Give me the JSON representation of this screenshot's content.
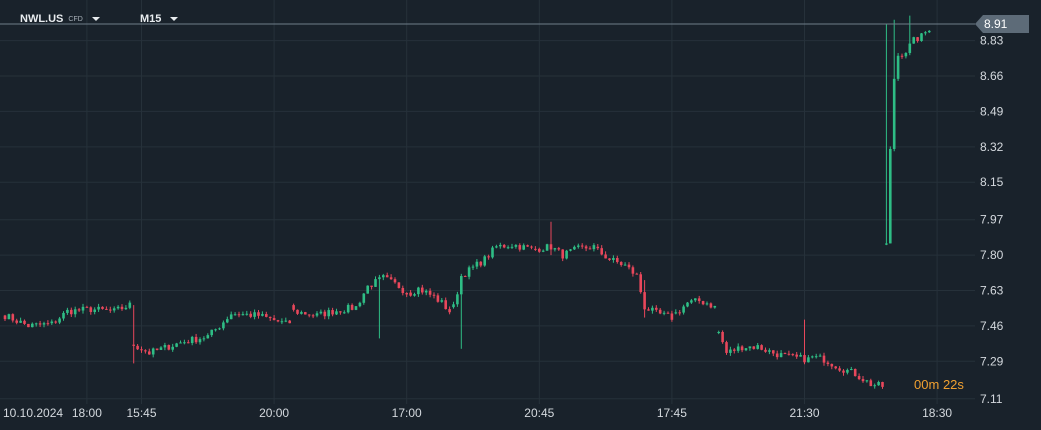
{
  "toolbar": {
    "symbol": "NWL.US",
    "symbol_type": "CFD",
    "timeframe": "M15"
  },
  "countdown": {
    "minutes": "00",
    "min_unit": "m",
    "seconds": "22",
    "sec_unit": "s"
  },
  "colors": {
    "background": "#19222b",
    "grid": "#26313a",
    "up": "#2ebd85",
    "down": "#e8475b",
    "price_tag": "#5d6b78",
    "axis_text": "#d4d9de"
  },
  "chart_data": {
    "type": "candlestick",
    "y_ticks": [
      "8.83",
      "8.66",
      "8.49",
      "8.32",
      "8.15",
      "7.97",
      "7.80",
      "7.63",
      "7.46",
      "7.29",
      "7.11"
    ],
    "y_tick_values": [
      8.83,
      8.66,
      8.49,
      8.32,
      8.15,
      7.97,
      7.8,
      7.63,
      7.46,
      7.29,
      7.11
    ],
    "ylim": [
      7.085,
      9.025
    ],
    "current_price": "8.91",
    "current_price_value": 8.91,
    "x_ticks": [
      "10.10.2024",
      "18:00",
      "15:45",
      "20:00",
      "17:00",
      "20:45",
      "17:45",
      "21:30",
      "18:30"
    ],
    "x_tick_index": [
      0,
      21,
      35,
      69,
      103,
      137,
      171,
      205,
      239
    ],
    "n_bars": 240,
    "segments": [
      {
        "from": 0,
        "to": 32,
        "start": 7.51,
        "end": 7.56,
        "points": [
          [
            0,
            7.51
          ],
          [
            6,
            7.46
          ],
          [
            12,
            7.47
          ],
          [
            16,
            7.53
          ],
          [
            22,
            7.54
          ],
          [
            28,
            7.53
          ],
          [
            32,
            7.56
          ]
        ]
      },
      {
        "from": 33,
        "to": 73,
        "start": 7.37,
        "end": 7.56,
        "points": [
          [
            33,
            7.37
          ],
          [
            37,
            7.33
          ],
          [
            45,
            7.38
          ],
          [
            52,
            7.41
          ],
          [
            55,
            7.46
          ],
          [
            58,
            7.52
          ],
          [
            65,
            7.51
          ],
          [
            72,
            7.47
          ],
          [
            75,
            7.49
          ],
          [
            78,
            7.56
          ]
        ]
      },
      {
        "from": 74,
        "to": 103,
        "start": 7.56,
        "end": 7.53,
        "points": [
          [
            74,
            7.53
          ],
          [
            80,
            7.51
          ],
          [
            84,
            7.53
          ],
          [
            90,
            7.55
          ],
          [
            93,
            7.65
          ],
          [
            97,
            7.69
          ],
          [
            101,
            7.65
          ],
          [
            103,
            7.62
          ]
        ]
      },
      {
        "from": 104,
        "to": 114,
        "start": 7.62,
        "end": 7.55,
        "points": [
          [
            104,
            7.62
          ],
          [
            106,
            7.64
          ],
          [
            108,
            7.62
          ],
          [
            110,
            7.6
          ],
          [
            112,
            7.57
          ],
          [
            114,
            7.53
          ]
        ]
      },
      {
        "from": 115,
        "to": 135,
        "start": 7.55,
        "end": 7.83,
        "points": [
          [
            115,
            7.55
          ],
          [
            117,
            7.7
          ],
          [
            120,
            7.74
          ],
          [
            123,
            7.78
          ],
          [
            126,
            7.84
          ],
          [
            130,
            7.85
          ],
          [
            135,
            7.83
          ]
        ]
      },
      {
        "from": 136,
        "to": 151,
        "start": 7.83,
        "end": 7.84,
        "points": [
          [
            136,
            7.83
          ],
          [
            140,
            7.84
          ],
          [
            143,
            7.8
          ],
          [
            147,
            7.83
          ],
          [
            151,
            7.84
          ]
        ]
      },
      {
        "from": 152,
        "to": 171,
        "start": 7.84,
        "end": 7.5,
        "points": [
          [
            152,
            7.82
          ],
          [
            155,
            7.78
          ],
          [
            159,
            7.75
          ],
          [
            162,
            7.7
          ],
          [
            164,
            7.55
          ],
          [
            167,
            7.52
          ],
          [
            171,
            7.5
          ]
        ]
      },
      {
        "from": 172,
        "to": 182,
        "start": 7.52,
        "end": 7.55,
        "points": [
          [
            172,
            7.52
          ],
          [
            175,
            7.57
          ],
          [
            178,
            7.58
          ],
          [
            180,
            7.57
          ],
          [
            182,
            7.55
          ]
        ]
      },
      {
        "from": 183,
        "to": 206,
        "start": 7.43,
        "end": 7.3,
        "points": [
          [
            183,
            7.43
          ],
          [
            185,
            7.33
          ],
          [
            189,
            7.36
          ],
          [
            193,
            7.36
          ],
          [
            197,
            7.33
          ],
          [
            201,
            7.31
          ],
          [
            206,
            7.3
          ]
        ]
      },
      {
        "from": 207,
        "to": 225,
        "start": 7.31,
        "end": 7.17,
        "points": [
          [
            207,
            7.31
          ],
          [
            210,
            7.3
          ],
          [
            214,
            7.26
          ],
          [
            218,
            7.23
          ],
          [
            222,
            7.18
          ],
          [
            225,
            7.17
          ]
        ]
      },
      {
        "from": 226,
        "to": 237,
        "start": 7.85,
        "end": 8.89,
        "points": [
          [
            226,
            7.85
          ],
          [
            227,
            8.3
          ],
          [
            228,
            8.65
          ],
          [
            229,
            8.76
          ],
          [
            231,
            8.78
          ],
          [
            233,
            8.83
          ],
          [
            235,
            8.85
          ],
          [
            237,
            8.89
          ]
        ]
      }
    ],
    "spikes": [
      {
        "i": 33,
        "high": 7.56,
        "low": 7.28
      },
      {
        "i": 96,
        "high": 7.66,
        "low": 7.4
      },
      {
        "i": 117,
        "high": 7.71,
        "low": 7.35
      },
      {
        "i": 140,
        "high": 7.96,
        "low": 7.8
      },
      {
        "i": 164,
        "high": 7.68,
        "low": 7.5
      },
      {
        "i": 205,
        "high": 7.49,
        "low": 7.28
      },
      {
        "i": 226,
        "high": 8.91,
        "low": 8.05
      },
      {
        "i": 228,
        "high": 8.93,
        "low": 8.62
      },
      {
        "i": 232,
        "high": 8.95,
        "low": 8.76
      }
    ]
  }
}
